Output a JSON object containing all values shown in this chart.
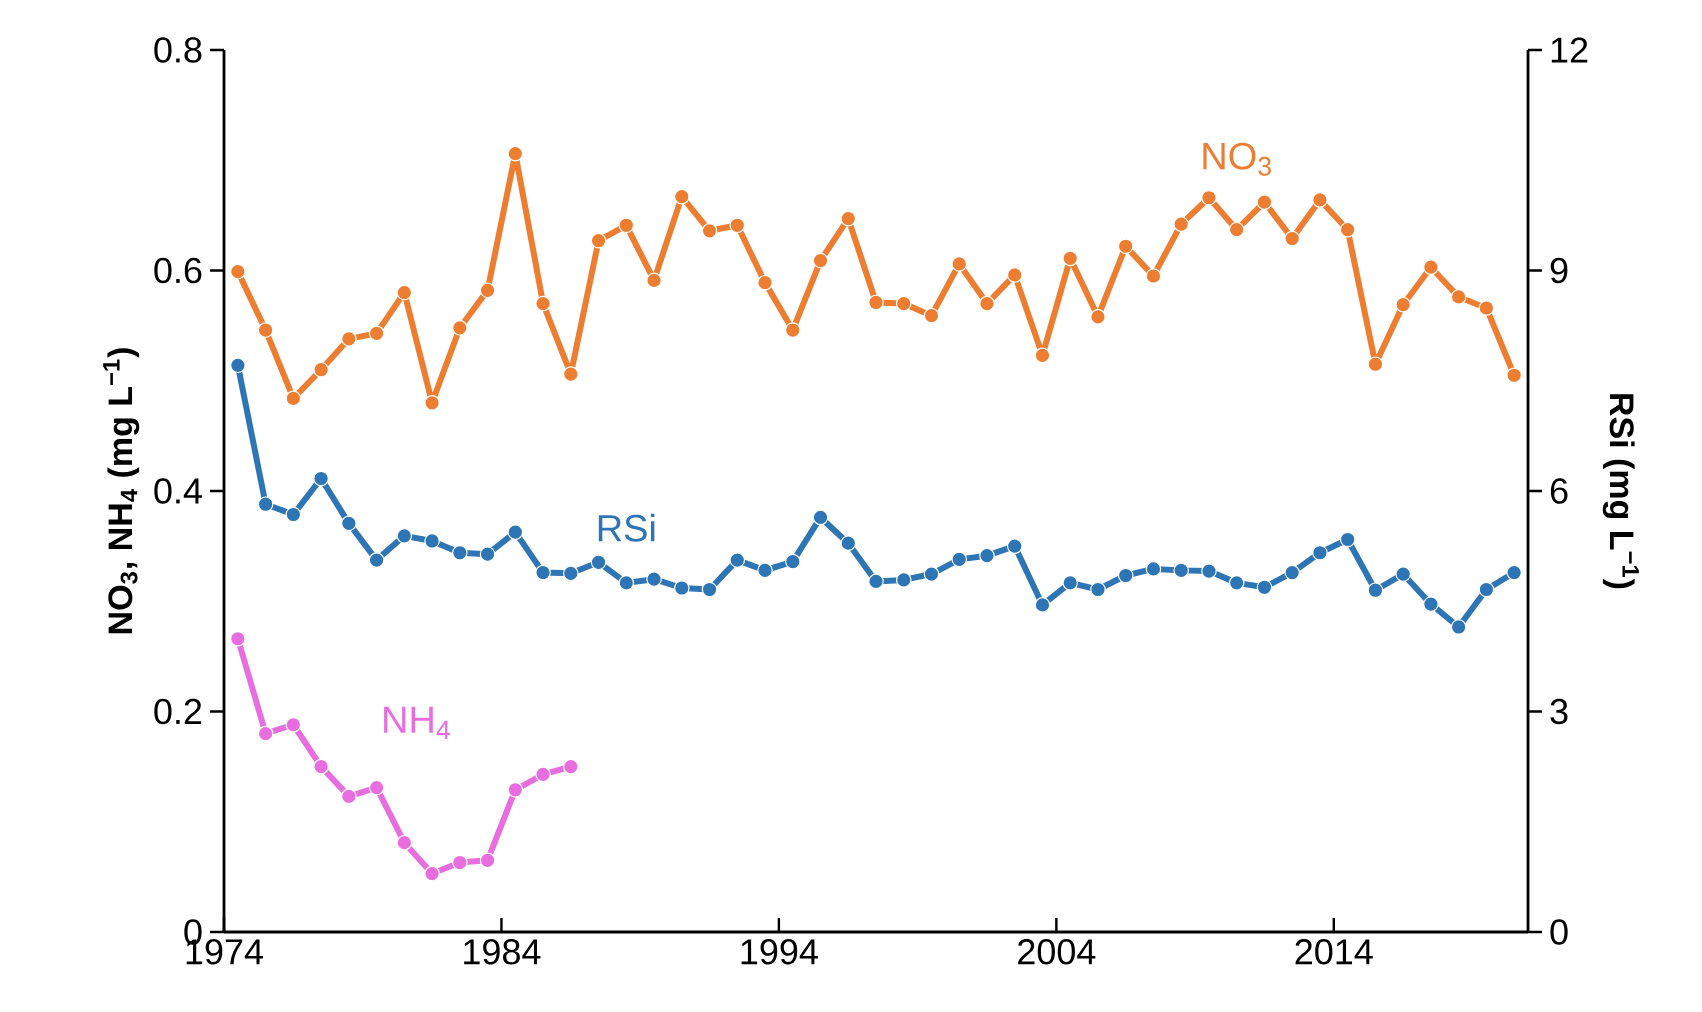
{
  "chart_data": {
    "type": "line",
    "marker": "circle",
    "line_style": "solid",
    "x": [
      1974.5,
      1975.5,
      1976.5,
      1977.5,
      1978.5,
      1979.5,
      1980.5,
      1981.5,
      1982.5,
      1983.5,
      1984.5,
      1985.5,
      1986.5,
      1987.5,
      1988.5,
      1989.5,
      1990.5,
      1991.5,
      1992.5,
      1993.5,
      1994.5,
      1995.5,
      1996.5,
      1997.5,
      1998.5,
      1999.5,
      2000.5,
      2001.5,
      2002.5,
      2003.5,
      2004.5,
      2005.5,
      2006.5,
      2007.5,
      2008.5,
      2009.5,
      2010.5,
      2011.5,
      2012.5,
      2013.5,
      2014.5,
      2015.5,
      2016.5,
      2017.5,
      2018.5,
      2019.5,
      2020.5
    ],
    "xlim": [
      1974,
      2021
    ],
    "xticks": [
      1974,
      1984,
      1994,
      2004,
      2014
    ],
    "ylim": [
      0,
      0.8
    ],
    "yticks": [
      0,
      0.2,
      0.4,
      0.6,
      0.8
    ],
    "y2lim": [
      0,
      12
    ],
    "y2ticks": [
      0,
      3,
      6,
      9,
      12
    ],
    "ylabel": "NO$_{3}$, NH$_{4}$ (mg L$^{−1}$)",
    "y2label": "RSi (mg L$^{−1}$)",
    "series": [
      {
        "name": "NO$_{3}$",
        "color": "#ed7d31",
        "values": [
          0.599,
          0.546,
          0.484,
          0.51,
          0.538,
          0.543,
          0.58,
          0.48,
          0.548,
          0.582,
          0.706,
          0.57,
          0.506,
          0.627,
          0.641,
          0.591,
          0.667,
          0.636,
          0.641,
          0.589,
          0.546,
          0.609,
          0.647,
          0.571,
          0.57,
          0.559,
          0.606,
          0.57,
          0.596,
          0.523,
          0.611,
          0.558,
          0.622,
          0.595,
          0.642,
          0.666,
          0.637,
          0.662,
          0.629,
          0.664,
          0.637,
          0.515,
          0.569,
          0.603,
          0.576,
          0.566,
          0.505
        ]
      },
      {
        "name": "RSi",
        "color": "#2e75b6",
        "axis": "y2",
        "values": [
          7.71,
          5.82,
          5.68,
          6.17,
          5.56,
          5.06,
          5.39,
          5.32,
          5.16,
          5.14,
          5.44,
          4.89,
          4.88,
          5.03,
          4.75,
          4.8,
          4.68,
          4.66,
          5.06,
          4.92,
          5.04,
          5.64,
          5.29,
          4.77,
          4.79,
          4.87,
          5.07,
          5.12,
          5.25,
          4.45,
          4.75,
          4.66,
          4.85,
          4.94,
          4.92,
          4.91,
          4.75,
          4.69,
          4.89,
          5.16,
          5.34,
          4.65,
          4.87,
          4.46,
          4.15,
          4.66,
          4.89
        ]
      },
      {
        "name": "NH$_{4}$",
        "color": "#e86ee0",
        "x": [
          1974.5,
          1975.5,
          1976.5,
          1977.5,
          1978.5,
          1979.5,
          1980.5,
          1981.5,
          1982.5,
          1983.5,
          1984.5,
          1985.5,
          1986.5
        ],
        "values": [
          0.266,
          0.18,
          0.188,
          0.15,
          0.123,
          0.131,
          0.081,
          0.053,
          0.063,
          0.065,
          0.129,
          0.143,
          0.15
        ]
      }
    ]
  }
}
